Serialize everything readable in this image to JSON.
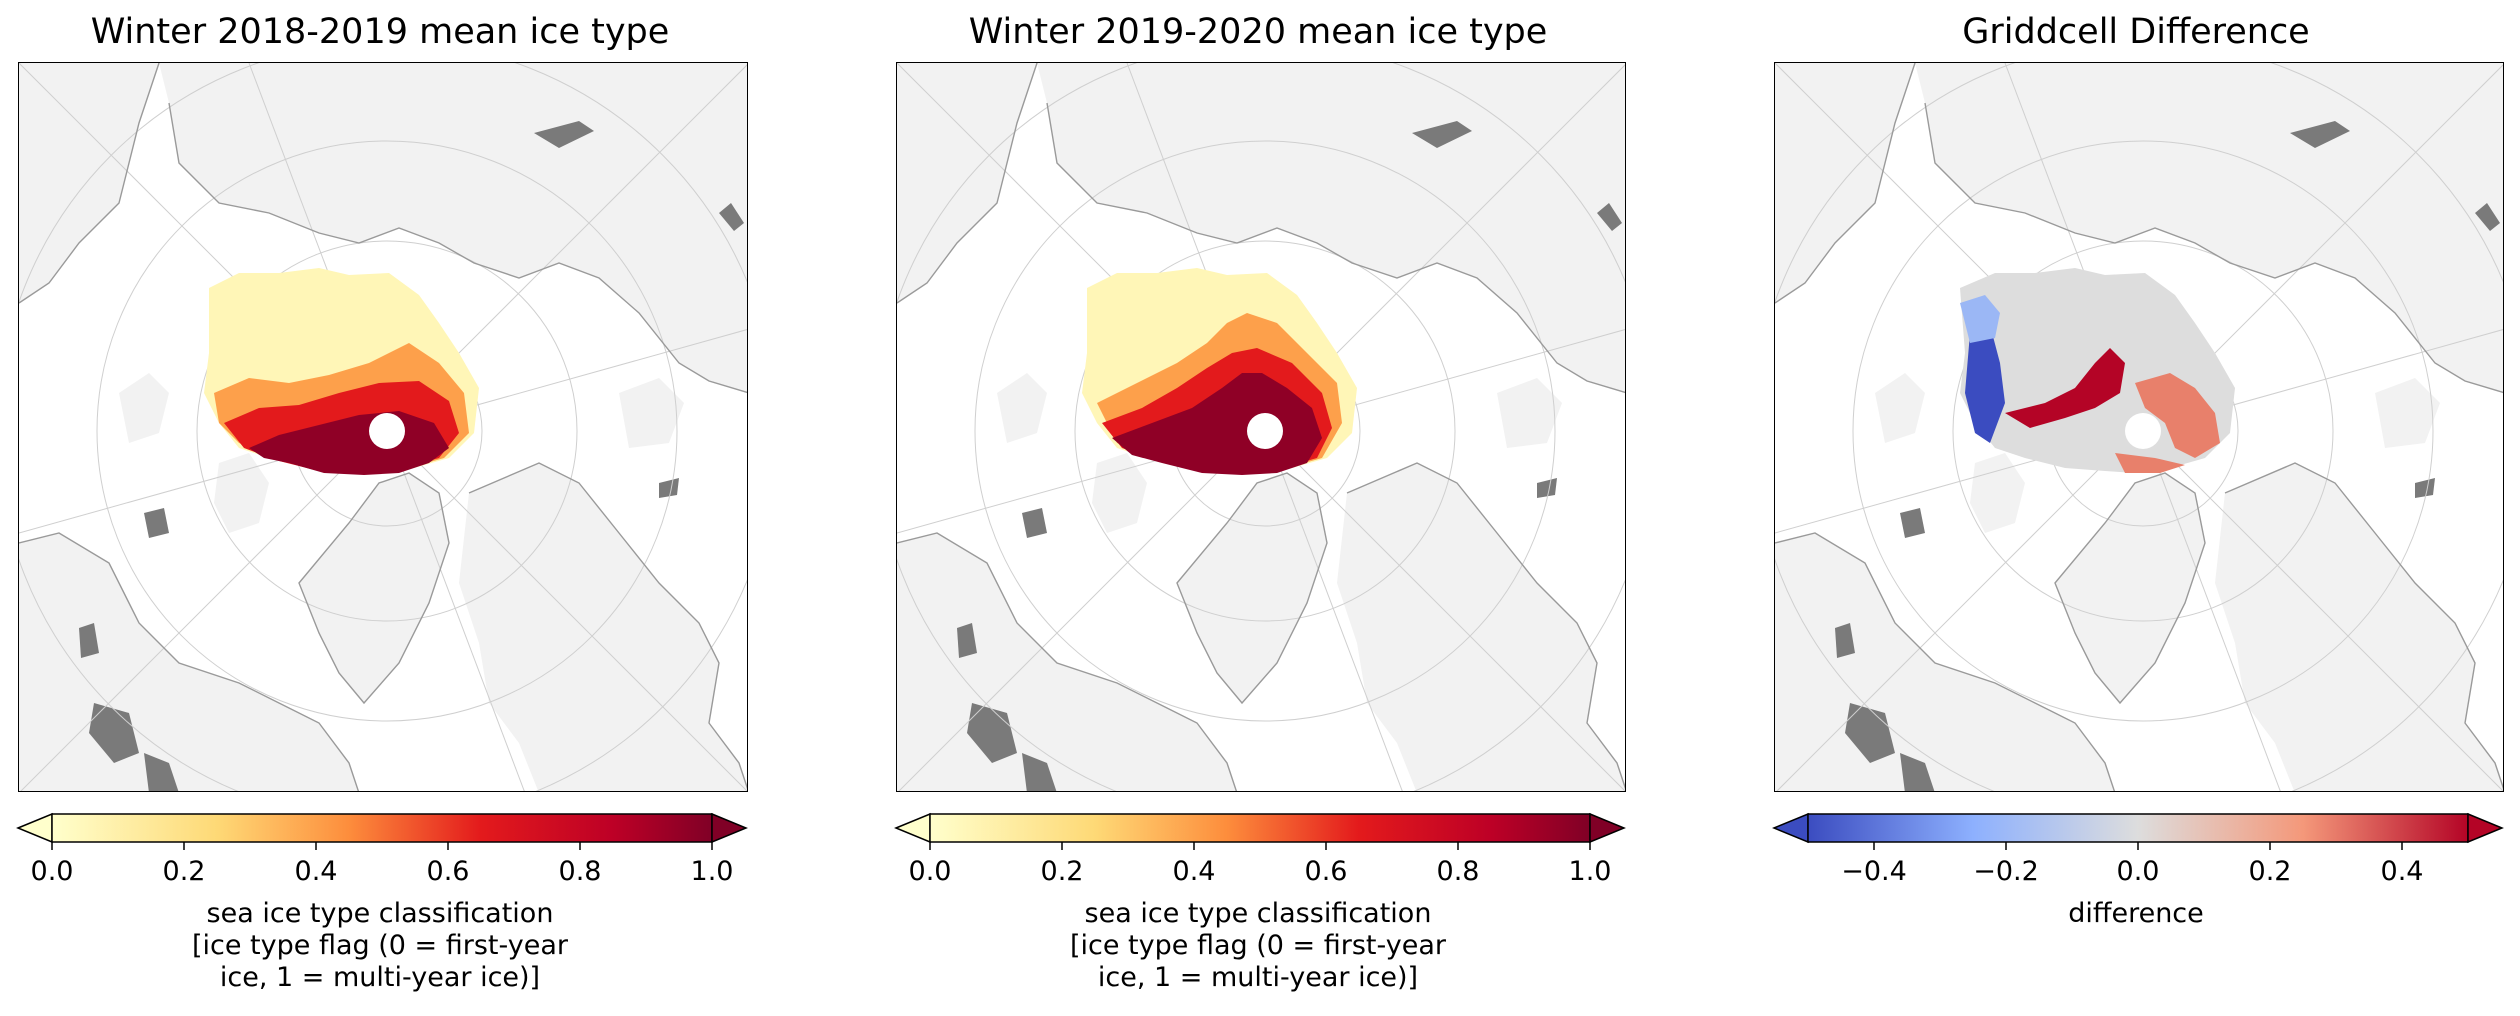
{
  "panels": [
    {
      "title": "Winter 2018-2019 mean ice type",
      "colorbar": {
        "label_lines": [
          "sea ice type classification",
          "[ice type flag (0 = first-year",
          "ice, 1 = multi-year ice)]"
        ],
        "ticks": [
          "0.0",
          "0.2",
          "0.4",
          "0.6",
          "0.8",
          "1.0"
        ],
        "range": [
          0,
          1
        ],
        "colormap": "YlOrRd",
        "extend": "both"
      }
    },
    {
      "title": "Winter 2019-2020 mean ice type",
      "colorbar": {
        "label_lines": [
          "sea ice type classification",
          "[ice type flag (0 = first-year",
          "ice, 1 = multi-year ice)]"
        ],
        "ticks": [
          "0.0",
          "0.2",
          "0.4",
          "0.6",
          "0.8",
          "1.0"
        ],
        "range": [
          0,
          1
        ],
        "colormap": "YlOrRd",
        "extend": "both"
      }
    },
    {
      "title": "Griddcell Difference",
      "colorbar": {
        "label_lines": [
          "difference"
        ],
        "ticks": [
          "−0.4",
          "−0.2",
          "0.0",
          "0.2",
          "0.4"
        ],
        "range": [
          -0.5,
          0.5
        ],
        "colormap": "coolwarm",
        "extend": "both"
      }
    }
  ],
  "colors": {
    "land": "#f2f2f2",
    "lakes": "#7a7a7a",
    "coastline": "#9a9a9a",
    "graticule": "#cfcfcf",
    "ice_low": "#ffffcc",
    "ice_high": "#800026",
    "diff_neg": "#3b4cc0",
    "diff_zero": "#dddddd",
    "diff_pos": "#b40426"
  }
}
